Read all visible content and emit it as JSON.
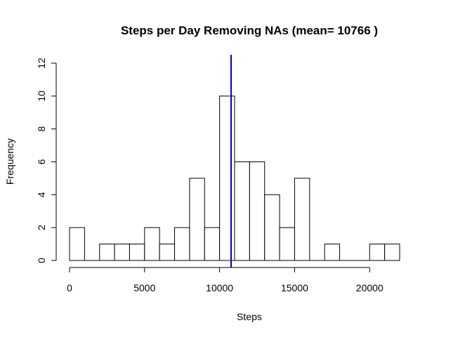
{
  "chart_data": {
    "type": "bar",
    "title": "Steps per Day Removing NAs (mean= 10766 )",
    "xlabel": "Steps",
    "ylabel": "Frequency",
    "bin_width": 1000,
    "bins_start": [
      0,
      1000,
      2000,
      3000,
      4000,
      5000,
      6000,
      7000,
      8000,
      9000,
      10000,
      11000,
      12000,
      13000,
      14000,
      15000,
      16000,
      17000,
      18000,
      19000,
      20000,
      21000
    ],
    "values": [
      2,
      0,
      1,
      1,
      1,
      2,
      1,
      2,
      5,
      2,
      10,
      6,
      6,
      4,
      2,
      5,
      0,
      1,
      0,
      0,
      1,
      1
    ],
    "xlim": [
      0,
      22000
    ],
    "ylim": [
      0,
      12
    ],
    "x_ticks": [
      "0",
      "5000",
      "10000",
      "15000",
      "20000"
    ],
    "y_ticks": [
      "0",
      "2",
      "4",
      "6",
      "8",
      "10",
      "12"
    ],
    "mean_line": {
      "value": 10766,
      "color": "#0000CD"
    },
    "bar_fill": "#ffffff",
    "bar_stroke": "#000000",
    "grid": false
  }
}
